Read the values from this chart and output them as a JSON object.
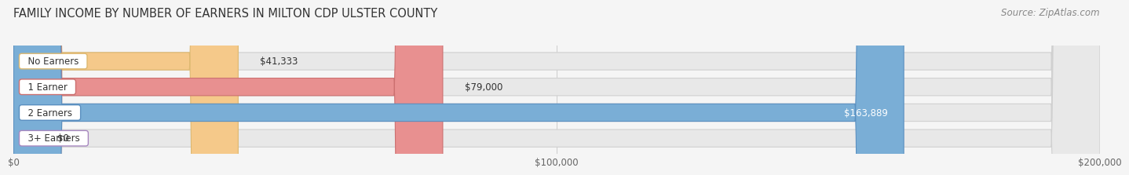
{
  "title": "FAMILY INCOME BY NUMBER OF EARNERS IN MILTON CDP ULSTER COUNTY",
  "source": "Source: ZipAtlas.com",
  "categories": [
    "No Earners",
    "1 Earner",
    "2 Earners",
    "3+ Earners"
  ],
  "values": [
    41333,
    79000,
    163889,
    0
  ],
  "value_labels": [
    "$41,333",
    "$79,000",
    "$163,889",
    "$0"
  ],
  "bar_colors": [
    "#f5c98a",
    "#e89090",
    "#7aaed6",
    "#c9a8d4"
  ],
  "bar_edge_colors": [
    "#ddb870",
    "#cc7070",
    "#5a8fc0",
    "#a888c0"
  ],
  "label_text_colors": [
    "#333333",
    "#333333",
    "#ffffff",
    "#333333"
  ],
  "xlim": [
    0,
    200000
  ],
  "xticks": [
    0,
    100000,
    200000
  ],
  "xticklabels": [
    "$0",
    "$100,000",
    "$200,000"
  ],
  "background_color": "#f5f5f5",
  "bar_bg_color": "#e8e8e8",
  "bar_bg_edge_color": "#d0d0d0",
  "title_fontsize": 10.5,
  "source_fontsize": 8.5,
  "bar_height": 0.68,
  "figsize": [
    14.06,
    2.33
  ],
  "label_fontsize": 8.5
}
